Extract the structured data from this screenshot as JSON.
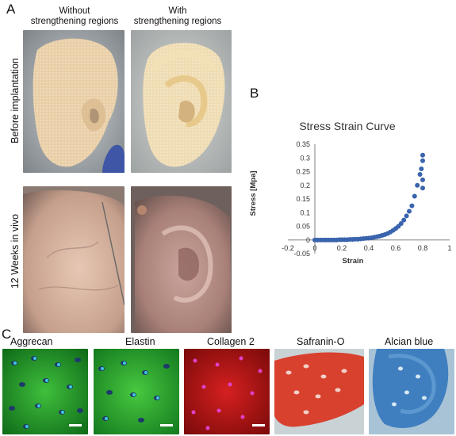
{
  "panel_a": {
    "letter": "A",
    "col_headers": [
      "Without\nstrengthening regions",
      "With\nstrengthening regions"
    ],
    "row_labels": [
      "Before implantation",
      "12 Weeks in vivo"
    ]
  },
  "panel_b": {
    "letter": "B"
  },
  "panel_c": {
    "letter": "C",
    "stains": [
      "Aggrecan",
      "Elastin",
      "Collagen 2",
      "Safranin-O",
      "Alcian blue"
    ]
  },
  "colors": {
    "series": "#3a64ad",
    "aggrecan": "#1f9a2a",
    "elastin": "#27a436",
    "collagen": "#c21818",
    "safranin": "#d8412e",
    "alcian": "#3f7fc0"
  },
  "chart_data": {
    "type": "scatter",
    "title": "Stress Strain Curve",
    "xlabel": "Strain",
    "ylabel": "Stress [Mpa]",
    "xlim": [
      -0.2,
      1
    ],
    "ylim": [
      -0.05,
      0.35
    ],
    "xticks": [
      "-0.2",
      "0",
      "0.2",
      "0.4",
      "0.6",
      "0.8",
      "1"
    ],
    "yticks": [
      "-0.05",
      "0",
      "0.05",
      "0.1",
      "0.15",
      "0.2",
      "0.25",
      "0.3",
      "0.35"
    ],
    "grid": false,
    "legend": "none",
    "series": [
      {
        "x": [
          0,
          0.02,
          0.04,
          0.06,
          0.08,
          0.1,
          0.12,
          0.14,
          0.16,
          0.18,
          0.2,
          0.22,
          0.24,
          0.26,
          0.28,
          0.3,
          0.32,
          0.34,
          0.36,
          0.38,
          0.4,
          0.42,
          0.44,
          0.46,
          0.48,
          0.5,
          0.52,
          0.54,
          0.56,
          0.58,
          0.6,
          0.62,
          0.64,
          0.66,
          0.68,
          0.7,
          0.72,
          0.74,
          0.76,
          0.78,
          0.79,
          0.8,
          0.8,
          0.8,
          0.8
        ],
        "y": [
          0,
          0,
          0,
          0,
          0,
          0,
          0,
          0,
          0,
          0.001,
          0.001,
          0.001,
          0.001,
          0.002,
          0.002,
          0.003,
          0.003,
          0.004,
          0.005,
          0.006,
          0.007,
          0.008,
          0.01,
          0.012,
          0.014,
          0.017,
          0.02,
          0.024,
          0.029,
          0.035,
          0.042,
          0.05,
          0.06,
          0.073,
          0.088,
          0.105,
          0.125,
          0.16,
          0.2,
          0.24,
          0.26,
          0.29,
          0.31,
          0.22,
          0.19
        ]
      }
    ]
  }
}
